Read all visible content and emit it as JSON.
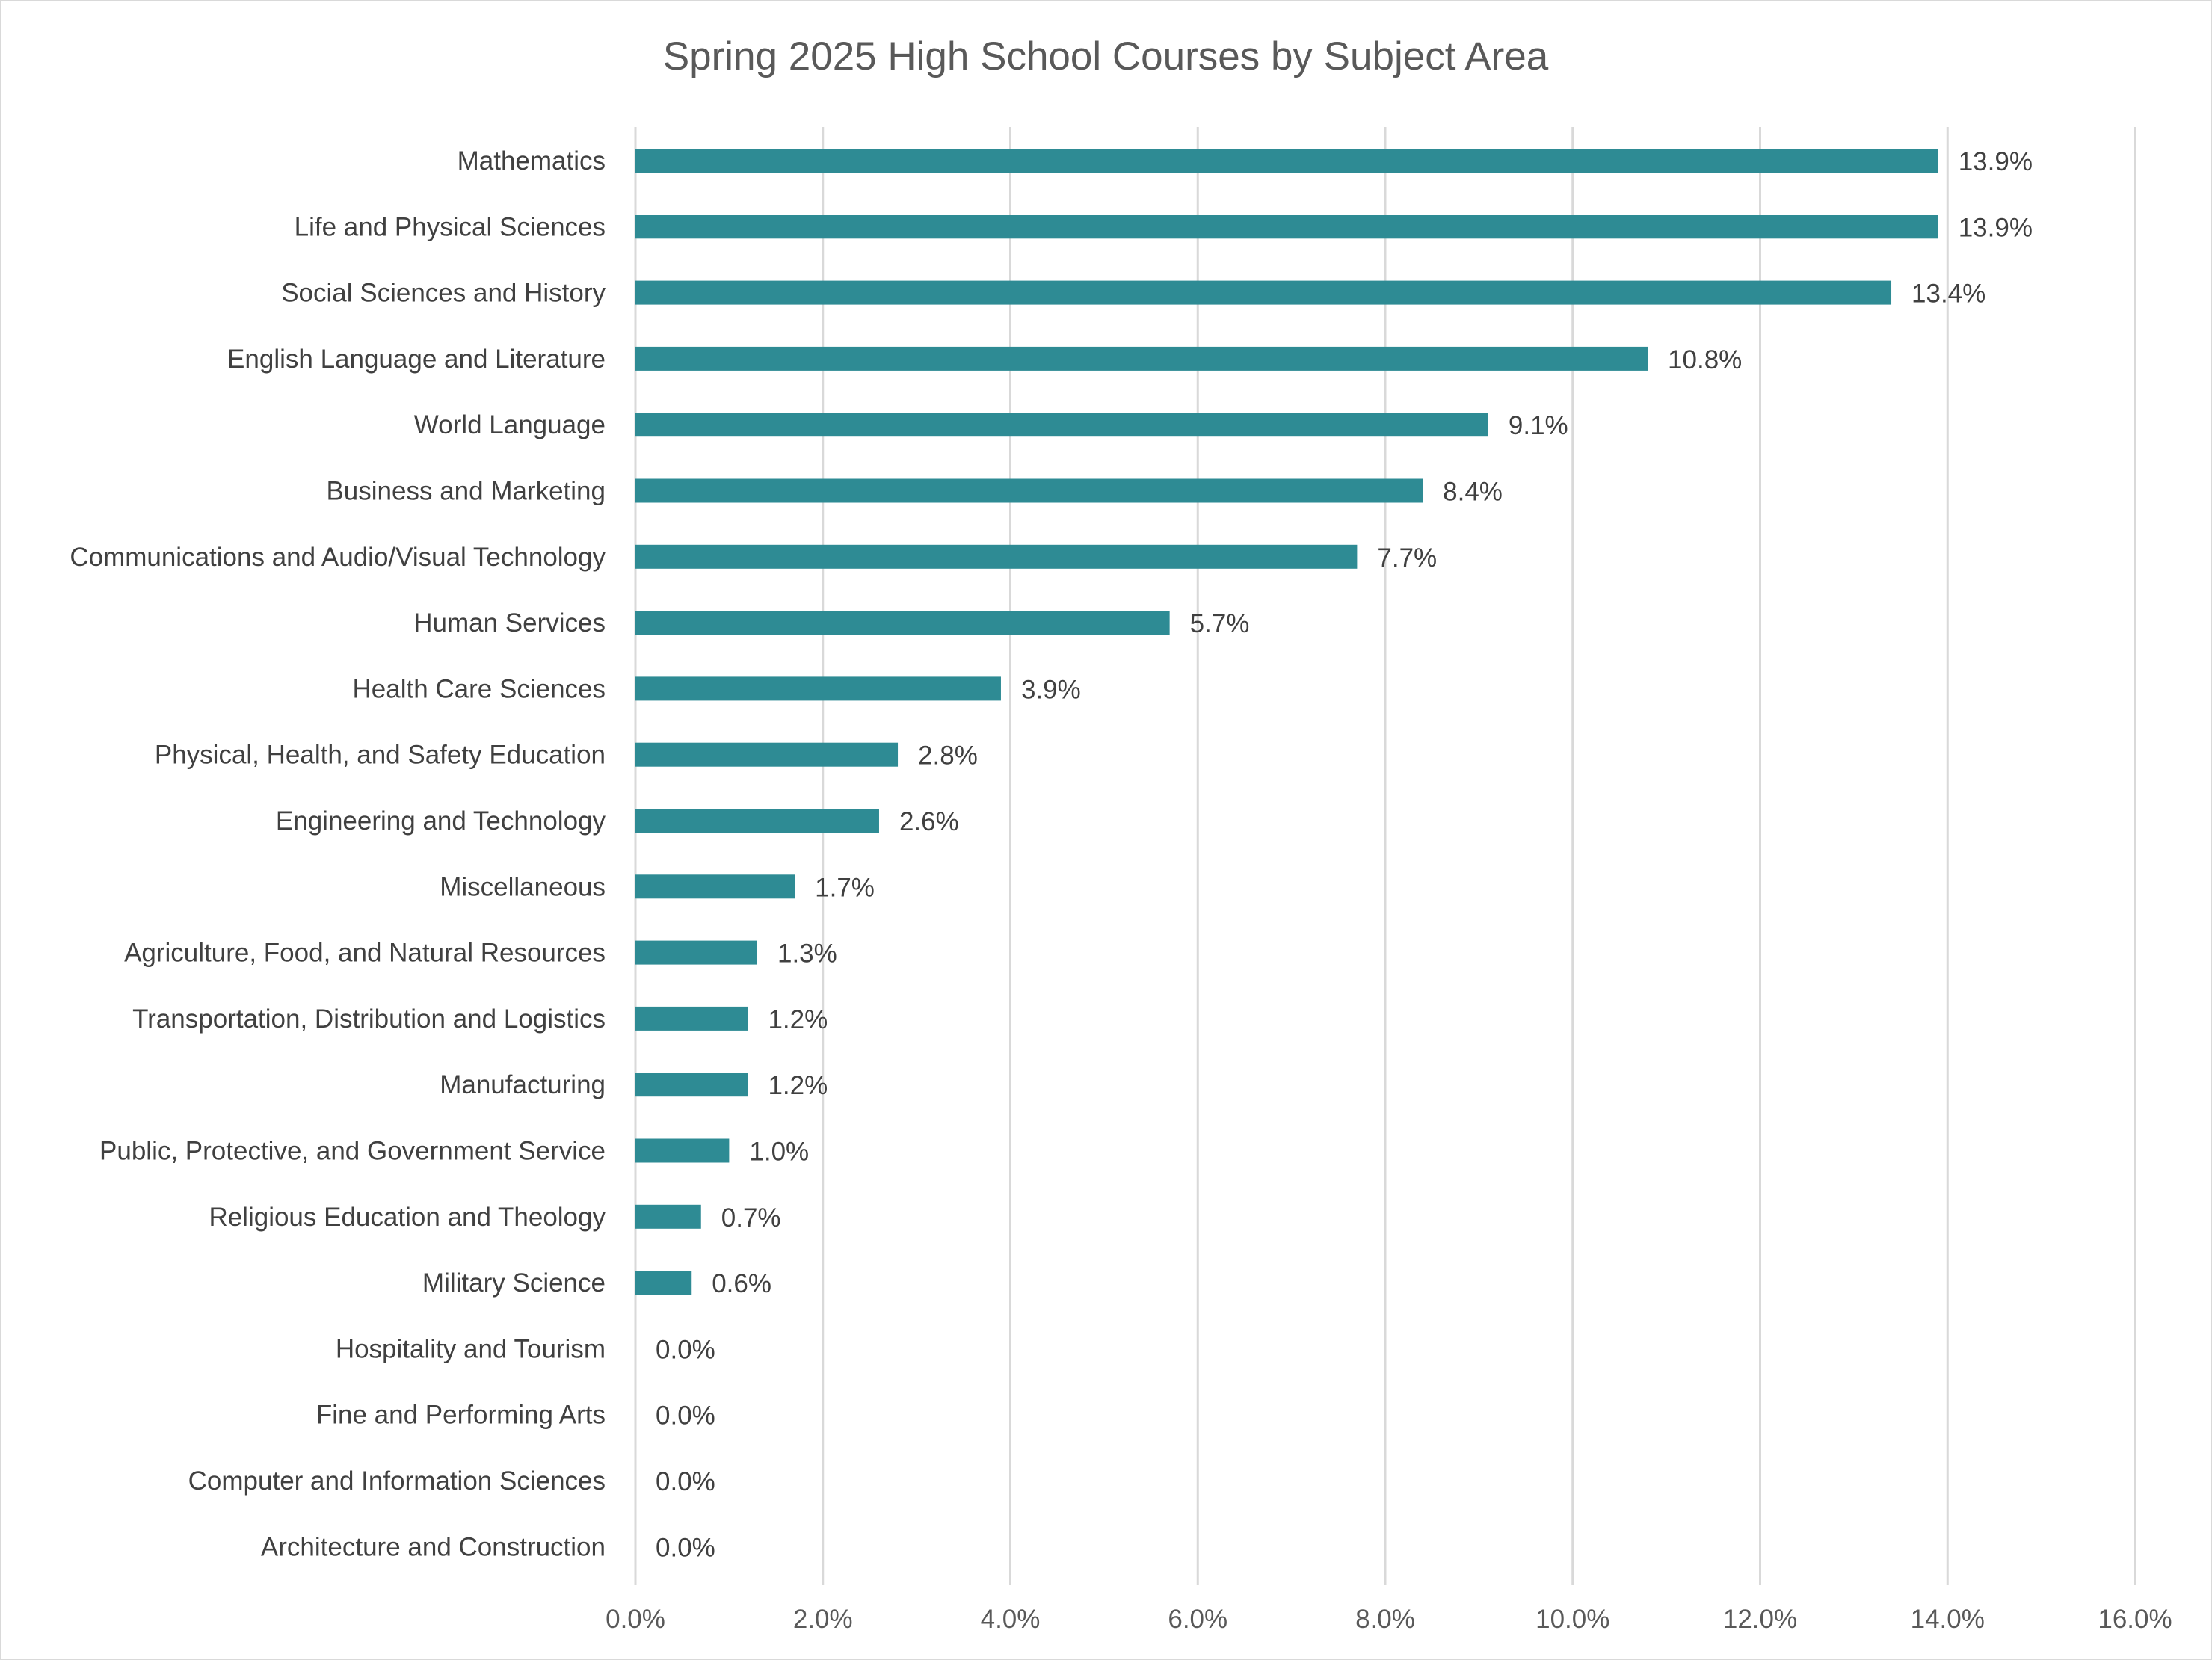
{
  "chart_data": {
    "type": "bar",
    "orientation": "horizontal",
    "title": "Spring 2025 High School Courses by Subject Area",
    "xlabel": "",
    "ylabel": "",
    "xlim": [
      0,
      16
    ],
    "x_ticks": [
      "0.0%",
      "2.0%",
      "4.0%",
      "6.0%",
      "8.0%",
      "10.0%",
      "12.0%",
      "14.0%",
      "16.0%"
    ],
    "grid": "vertical",
    "legend": "none",
    "bar_color": "#2e8b94",
    "categories": [
      "Mathematics",
      "Life and Physical Sciences",
      "Social Sciences and History",
      "English Language and Literature",
      "World Language",
      "Business and Marketing",
      "Communications and Audio/Visual Technology",
      "Human Services",
      "Health Care Sciences",
      "Physical, Health, and Safety Education",
      "Engineering and Technology",
      "Miscellaneous",
      "Agriculture, Food, and Natural Resources",
      "Transportation, Distribution and Logistics",
      "Manufacturing",
      "Public, Protective, and Government Service",
      "Religious Education and Theology",
      "Military Science",
      "Hospitality and Tourism",
      "Fine and Performing Arts",
      "Computer and Information Sciences",
      "Architecture and Construction"
    ],
    "values": [
      13.9,
      13.9,
      13.4,
      10.8,
      9.1,
      8.4,
      7.7,
      5.7,
      3.9,
      2.8,
      2.6,
      1.7,
      1.3,
      1.2,
      1.2,
      1.0,
      0.7,
      0.6,
      0.0,
      0.0,
      0.0,
      0.0
    ],
    "data_labels": [
      "13.9%",
      "13.9%",
      "13.4%",
      "10.8%",
      "9.1%",
      "8.4%",
      "7.7%",
      "5.7%",
      "3.9%",
      "2.8%",
      "2.6%",
      "1.7%",
      "1.3%",
      "1.2%",
      "1.2%",
      "1.0%",
      "0.7%",
      "0.6%",
      "0.0%",
      "0.0%",
      "0.0%",
      "0.0%"
    ]
  }
}
